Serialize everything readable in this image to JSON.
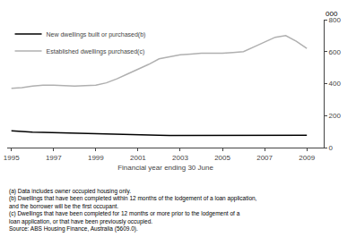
{
  "chart_data": {
    "type": "line",
    "xlabel": "Financial year ending 30 June",
    "ylabel": "000",
    "x": [
      1995,
      1995.5,
      1996,
      1996.5,
      1997,
      1997.5,
      1998,
      1998.5,
      1999,
      1999.5,
      2000,
      2000.5,
      2001,
      2001.5,
      2002,
      2002.5,
      2003,
      2003.5,
      2004,
      2004.5,
      2005,
      2005.5,
      2006,
      2006.5,
      2007,
      2007.5,
      2008,
      2008.5,
      2009
    ],
    "series": [
      {
        "name": "New dwellings built or purchased(b)",
        "color": "#000000",
        "values": [
          105,
          100,
          97,
          95,
          93,
          91,
          90,
          89,
          88,
          86,
          84,
          82,
          80,
          78,
          77,
          76,
          76,
          76,
          76,
          76,
          76,
          76,
          76,
          77,
          78,
          78,
          77,
          77,
          77
        ]
      },
      {
        "name": "Established dwellings purchased(c)",
        "color": "#b0b0b0",
        "values": [
          370,
          375,
          385,
          390,
          390,
          387,
          385,
          387,
          390,
          405,
          430,
          460,
          490,
          520,
          555,
          568,
          580,
          585,
          590,
          590,
          590,
          595,
          600,
          630,
          660,
          690,
          700,
          665,
          620
        ]
      }
    ],
    "xlim": [
      1994.8,
      2009.8
    ],
    "xticks": [
      1995,
      1997,
      1999,
      2001,
      2003,
      2005,
      2007,
      2009
    ],
    "ylim": [
      0,
      800
    ],
    "yticks": [
      0,
      200,
      400,
      600,
      800
    ],
    "grid": false,
    "legend": "upper left",
    "annotations": [
      "(a) Data includes owner occupied housing only.",
      "(b) Dwellings that have been completed within 12 months of the lodgement of a loan application,",
      "and the borrower will be the first occupant.",
      "(c) Dwellings that have been completed for 12 months or more prior to the lodgement of a",
      "loan application, or that have been previously occupied.",
      "Source: ABS Housing Finance, Australia (5609.0)."
    ]
  }
}
